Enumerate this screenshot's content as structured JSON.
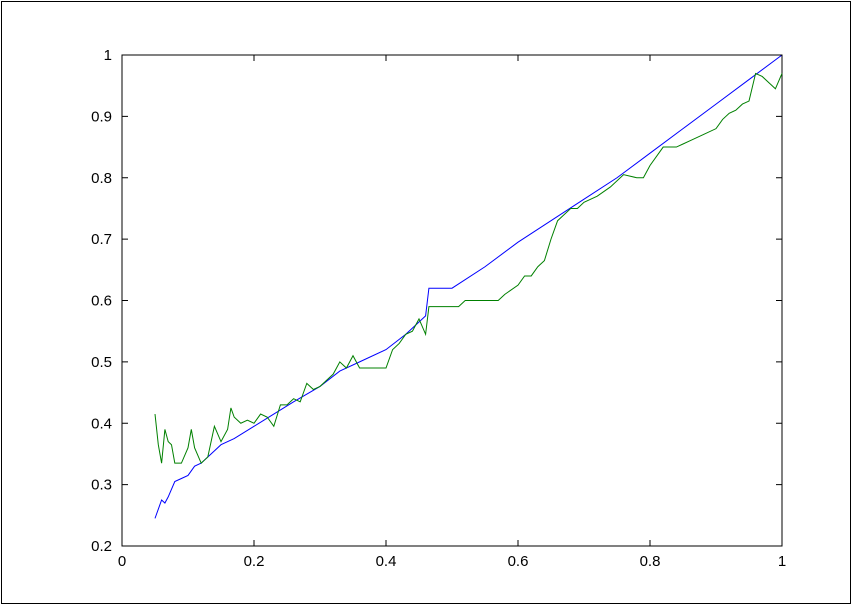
{
  "chart_data": {
    "type": "line",
    "title": "",
    "xlabel": "",
    "ylabel": "",
    "xlim": [
      0,
      1
    ],
    "ylim": [
      0.2,
      1
    ],
    "x_ticks": [
      0,
      0.2,
      0.4,
      0.6,
      0.8,
      1
    ],
    "x_tick_labels": [
      "0",
      "0.2",
      "0.4",
      "0.6",
      "0.8",
      "1"
    ],
    "y_ticks": [
      0.2,
      0.3,
      0.4,
      0.5,
      0.6,
      0.7,
      0.8,
      0.9,
      1
    ],
    "y_tick_labels": [
      "0.2",
      "0.3",
      "0.4",
      "0.5",
      "0.6",
      "0.7",
      "0.8",
      "0.9",
      "1"
    ],
    "grid": false,
    "series": [
      {
        "color": "#0000ff",
        "x": [
          0.05,
          0.06,
          0.065,
          0.07,
          0.08,
          0.09,
          0.1,
          0.11,
          0.12,
          0.13,
          0.14,
          0.15,
          0.17,
          0.2,
          0.23,
          0.26,
          0.3,
          0.33,
          0.36,
          0.4,
          0.43,
          0.46,
          0.465,
          0.5,
          0.55,
          0.6,
          0.65,
          0.7,
          0.75,
          0.8,
          0.85,
          0.9,
          0.95,
          1.0
        ],
        "y": [
          0.245,
          0.275,
          0.27,
          0.28,
          0.305,
          0.31,
          0.315,
          0.33,
          0.335,
          0.345,
          0.355,
          0.365,
          0.375,
          0.395,
          0.415,
          0.435,
          0.46,
          0.485,
          0.5,
          0.52,
          0.545,
          0.575,
          0.62,
          0.62,
          0.655,
          0.695,
          0.73,
          0.765,
          0.8,
          0.84,
          0.88,
          0.92,
          0.96,
          1.0
        ]
      },
      {
        "color": "#008000",
        "x": [
          0.05,
          0.055,
          0.06,
          0.065,
          0.07,
          0.075,
          0.08,
          0.09,
          0.1,
          0.105,
          0.11,
          0.12,
          0.125,
          0.13,
          0.14,
          0.15,
          0.16,
          0.165,
          0.17,
          0.18,
          0.19,
          0.2,
          0.21,
          0.22,
          0.23,
          0.24,
          0.25,
          0.26,
          0.27,
          0.28,
          0.29,
          0.3,
          0.31,
          0.32,
          0.33,
          0.34,
          0.35,
          0.36,
          0.38,
          0.4,
          0.41,
          0.42,
          0.43,
          0.44,
          0.45,
          0.46,
          0.465,
          0.47,
          0.49,
          0.51,
          0.52,
          0.53,
          0.55,
          0.57,
          0.58,
          0.6,
          0.61,
          0.62,
          0.63,
          0.64,
          0.65,
          0.66,
          0.68,
          0.69,
          0.7,
          0.72,
          0.74,
          0.76,
          0.78,
          0.79,
          0.8,
          0.82,
          0.84,
          0.85,
          0.86,
          0.88,
          0.9,
          0.91,
          0.92,
          0.93,
          0.94,
          0.95,
          0.96,
          0.97,
          0.98,
          0.99,
          1.0
        ],
        "y": [
          0.415,
          0.365,
          0.335,
          0.39,
          0.37,
          0.365,
          0.335,
          0.335,
          0.36,
          0.39,
          0.36,
          0.335,
          0.34,
          0.345,
          0.395,
          0.37,
          0.39,
          0.425,
          0.41,
          0.4,
          0.405,
          0.4,
          0.415,
          0.41,
          0.395,
          0.43,
          0.43,
          0.44,
          0.435,
          0.465,
          0.455,
          0.46,
          0.47,
          0.48,
          0.5,
          0.49,
          0.51,
          0.49,
          0.49,
          0.49,
          0.52,
          0.53,
          0.545,
          0.55,
          0.57,
          0.545,
          0.59,
          0.59,
          0.59,
          0.59,
          0.6,
          0.6,
          0.6,
          0.6,
          0.61,
          0.625,
          0.64,
          0.64,
          0.655,
          0.665,
          0.7,
          0.73,
          0.75,
          0.75,
          0.76,
          0.77,
          0.785,
          0.805,
          0.8,
          0.8,
          0.82,
          0.85,
          0.85,
          0.855,
          0.86,
          0.87,
          0.88,
          0.895,
          0.905,
          0.91,
          0.92,
          0.925,
          0.97,
          0.965,
          0.955,
          0.945,
          0.97
        ]
      }
    ]
  }
}
